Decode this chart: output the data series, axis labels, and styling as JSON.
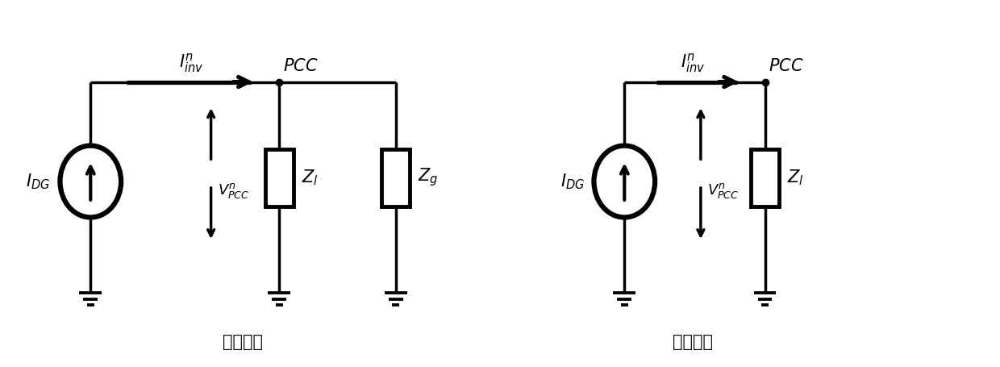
{
  "fig_width": 12.4,
  "fig_height": 4.55,
  "bg_color": "#ffffff",
  "line_color": "#000000",
  "line_width": 2.5,
  "label_left": "并网运行",
  "label_right": "孤岛运行",
  "label_fontsize": 15,
  "text_fontsize": 15,
  "small_fontsize": 13
}
